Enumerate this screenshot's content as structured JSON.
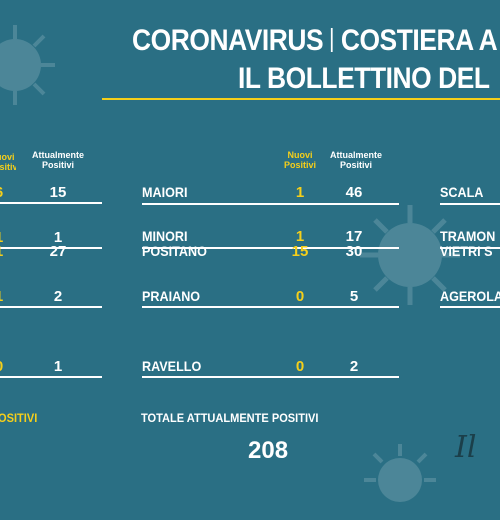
{
  "title": {
    "line1_left": "CORONAVIRUS",
    "line1_right": "COSTIERA A",
    "line2": "IL BOLLETTINO DEL"
  },
  "headers": {
    "new_positive": "Nuovi\nPositivi",
    "current_positive": "Attualmente\nPositivi"
  },
  "left_column": [
    {
      "new": "6",
      "current": "15"
    },
    {
      "new": "1",
      "current": "1"
    },
    {
      "new": "1",
      "current": "27"
    },
    {
      "new": "1",
      "current": "2"
    },
    {
      "new": "0",
      "current": "1"
    }
  ],
  "middle_column": [
    {
      "town": "MAIORI",
      "new": "1",
      "current": "46"
    },
    {
      "town": "MINORI",
      "new": "1",
      "current": "17"
    },
    {
      "town": "POSITANO",
      "new": "15",
      "current": "30"
    },
    {
      "town": "PRAIANO",
      "new": "0",
      "current": "5"
    },
    {
      "town": "RAVELLO",
      "new": "0",
      "current": "2"
    }
  ],
  "right_column": [
    {
      "town": "SCALA"
    },
    {
      "town": "TRAMON"
    },
    {
      "town": "VIETRI S"
    },
    {
      "town": "AGEROLA"
    }
  ],
  "totals": {
    "left_label": "OSITIVI",
    "middle_label": "TOTALE ATTUALMENTE POSITIVI",
    "middle_value": "208"
  },
  "logo_text": "Il",
  "colors": {
    "background": "#2a6f84",
    "accent": "#f5cf1a",
    "text": "#ffffff"
  }
}
